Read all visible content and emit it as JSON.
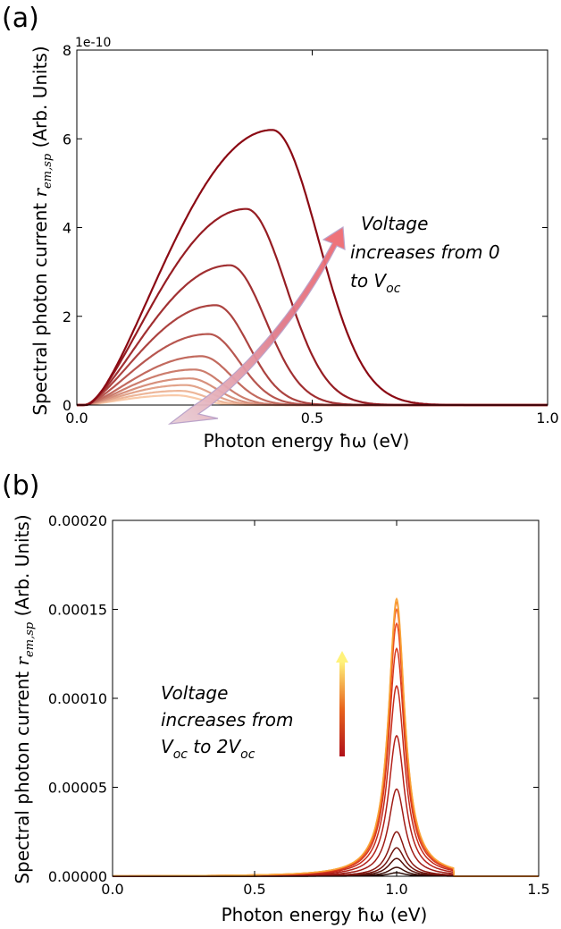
{
  "chart_data": [
    {
      "type": "line",
      "panel_label": "(a)",
      "xlabel": "Photon energy ħω (eV)",
      "ylabel": "Spectral photon current r_em,sp (Arb. Units)",
      "ylabel_prefix": "Spectral photon current ",
      "ylabel_sym": "r",
      "ylabel_sub": "em,sp",
      "ylabel_suffix": " (Arb. Units)",
      "y_offset_text": "1e-10",
      "xlim": [
        0.0,
        1.0
      ],
      "ylim": [
        0,
        8
      ],
      "xticks": [
        "0.0",
        "0.5",
        "1.0"
      ],
      "yticks": [
        "0",
        "2",
        "4",
        "6",
        "8"
      ],
      "grid": false,
      "color_start": "#f8c9a8",
      "color_end": "#8b0a14",
      "series": [
        {
          "peak_x": 0.21,
          "peak_y": 0.22
        },
        {
          "peak_x": 0.22,
          "peak_y": 0.32
        },
        {
          "peak_x": 0.23,
          "peak_y": 0.45
        },
        {
          "peak_x": 0.24,
          "peak_y": 0.6
        },
        {
          "peak_x": 0.25,
          "peak_y": 0.8
        },
        {
          "peak_x": 0.265,
          "peak_y": 1.1
        },
        {
          "peak_x": 0.28,
          "peak_y": 1.6
        },
        {
          "peak_x": 0.295,
          "peak_y": 2.25
        },
        {
          "peak_x": 0.325,
          "peak_y": 3.15
        },
        {
          "peak_x": 0.36,
          "peak_y": 4.42
        },
        {
          "peak_x": 0.415,
          "peak_y": 6.2
        }
      ],
      "annotation": {
        "line1": "Voltage",
        "line2": "increases from 0",
        "line3_prefix": "to V",
        "line3_sub": "oc"
      }
    },
    {
      "type": "line",
      "panel_label": "(b)",
      "xlabel": "Photon energy ħω (eV)",
      "ylabel": "Spectral photon current r_em,sp (Arb. Units)",
      "ylabel_prefix": "Spectral photon current ",
      "ylabel_sym": "r",
      "ylabel_sub": "em,sp",
      "ylabel_suffix": " (Arb. Units)",
      "xlim": [
        0.0,
        1.5
      ],
      "ylim": [
        0.0,
        0.0002
      ],
      "xticks": [
        "0.0",
        "0.5",
        "1.0",
        "1.5"
      ],
      "yticks": [
        "0.00000",
        "0.00005",
        "0.00010",
        "0.00015",
        "0.00020"
      ],
      "grid": false,
      "peak_x": 1.0,
      "series": [
        {
          "peak_y": 2e-06,
          "color": "#2a0a05"
        },
        {
          "peak_y": 5e-06,
          "color": "#3e0f08"
        },
        {
          "peak_y": 1e-05,
          "color": "#55120b"
        },
        {
          "peak_y": 1.6e-05,
          "color": "#70150e"
        },
        {
          "peak_y": 2.5e-05,
          "color": "#8a1812"
        },
        {
          "peak_y": 4.9e-05,
          "color": "#a01c16"
        },
        {
          "peak_y": 7.9e-05,
          "color": "#b4211a"
        },
        {
          "peak_y": 0.000107,
          "color": "#c62b1c"
        },
        {
          "peak_y": 0.000128,
          "color": "#d6381c"
        },
        {
          "peak_y": 0.000142,
          "color": "#e84a1e"
        },
        {
          "peak_y": 0.00015,
          "color": "#f26424"
        },
        {
          "peak_y": 0.000154,
          "color": "#f7862e"
        },
        {
          "peak_y": 0.000156,
          "color": "#f9a53a"
        }
      ],
      "annotation": {
        "line1": "Voltage",
        "line2": "increases from",
        "line3_a": "V",
        "line3_a_sub": "oc",
        "line3_b": " to 2V",
        "line3_b_sub": "oc"
      }
    }
  ]
}
